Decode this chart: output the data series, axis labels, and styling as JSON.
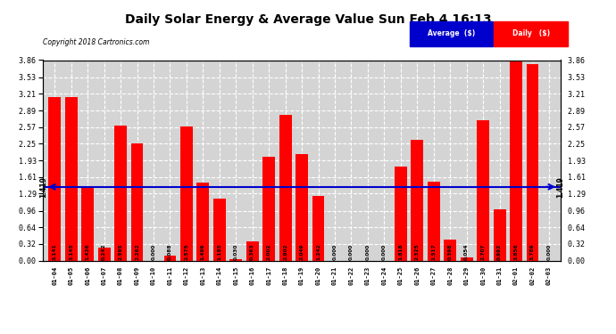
{
  "title": "Daily Solar Energy & Average Value Sun Feb 4 16:13",
  "copyright": "Copyright 2018 Cartronics.com",
  "categories": [
    "01-04",
    "01-05",
    "01-06",
    "01-07",
    "01-08",
    "01-09",
    "01-10",
    "01-11",
    "01-12",
    "01-13",
    "01-14",
    "01-15",
    "01-16",
    "01-17",
    "01-18",
    "01-19",
    "01-20",
    "01-21",
    "01-22",
    "01-23",
    "01-24",
    "01-25",
    "01-26",
    "01-27",
    "01-28",
    "01-29",
    "01-30",
    "01-31",
    "02-01",
    "02-02",
    "02-03"
  ],
  "values": [
    3.141,
    3.145,
    1.426,
    0.242,
    2.595,
    2.262,
    0.0,
    0.088,
    2.575,
    1.499,
    1.185,
    0.03,
    0.363,
    2.002,
    2.802,
    2.049,
    1.242,
    0.0,
    0.0,
    0.0,
    0.0,
    1.818,
    2.325,
    1.517,
    0.398,
    0.054,
    2.707,
    0.992,
    3.856,
    3.789,
    0.0
  ],
  "average": 1.419,
  "bar_color": "#ff0000",
  "average_line_color": "#0000cc",
  "background_color": "#ffffff",
  "plot_bg_color": "#d4d4d4",
  "grid_color": "#ffffff",
  "ylim": [
    0.0,
    3.86
  ],
  "yticks": [
    0.0,
    0.32,
    0.64,
    0.96,
    1.29,
    1.61,
    1.93,
    2.25,
    2.57,
    2.89,
    3.21,
    3.53,
    3.86
  ],
  "legend_avg_color": "#0000cc",
  "legend_daily_color": "#ff0000",
  "avg_label": "Average  ($)",
  "daily_label": "Daily   ($)"
}
